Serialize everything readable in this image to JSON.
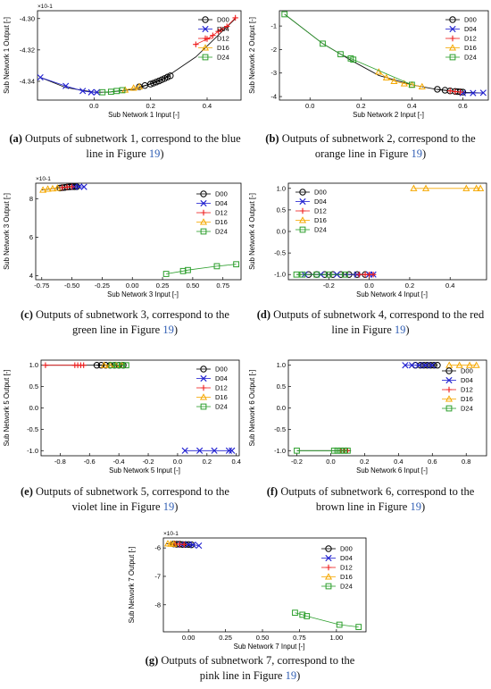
{
  "legend_labels": [
    "D00",
    "D04",
    "D12",
    "D16",
    "D24"
  ],
  "series_styles": [
    {
      "name": "D00",
      "color": "#000000",
      "marker": "circle"
    },
    {
      "name": "D04",
      "color": "#1f1fd0",
      "marker": "x"
    },
    {
      "name": "D12",
      "color": "#ee1c1c",
      "marker": "plus"
    },
    {
      "name": "D16",
      "color": "#f5a800",
      "marker": "triangle"
    },
    {
      "name": "D24",
      "color": "#2b9e2b",
      "marker": "square"
    }
  ],
  "captions": [
    {
      "letter": "(a)",
      "text": "Outputs of subnetwork 1, correspond to the blue line in Figure ",
      "ref": "19",
      "end": ")"
    },
    {
      "letter": "(b)",
      "text": "Outputs of subnetwork 2, correspond to the orange line in Figure ",
      "ref": "19",
      "end": ")"
    },
    {
      "letter": "(c)",
      "text": "Outputs of subnetwork 3, correspond to the green line in Figure ",
      "ref": "19",
      "end": ")"
    },
    {
      "letter": "(d)",
      "text": "Outputs of subnetwork 4, correspond to the red line in Figure ",
      "ref": "19",
      "end": ")"
    },
    {
      "letter": "(e)",
      "text": "Outputs of subnetwork 5, correspond to the violet line in Figure ",
      "ref": "19",
      "end": ")"
    },
    {
      "letter": "(f)",
      "text": "Outputs of subnetwork 6, correspond to the brown line in Figure ",
      "ref": "19",
      "end": ")"
    },
    {
      "letter": "(g)",
      "text": "Outputs of subnetwork 7, correspond to the pink line in Figure ",
      "ref": "19",
      "end": ")"
    }
  ],
  "chart_data": [
    {
      "type": "scatter",
      "xlabel": "Sub Network 1 Input [-]",
      "ylabel": "Sub Network 1 Output [-]",
      "multiplier": "×10^-1",
      "xlim": [
        -0.2,
        0.52
      ],
      "ylim": [
        -4.352,
        -4.295
      ],
      "xticks": [
        0.0,
        0.2,
        0.4
      ],
      "xtick_labels": [
        "0.0",
        "0.2",
        "0.4"
      ],
      "yticks": [
        -4.34,
        -4.32,
        -4.3
      ],
      "ytick_labels": [
        "-4.34",
        "-4.32",
        "-4.30"
      ],
      "legend_pos": "top-right",
      "curve": {
        "color": "#111111",
        "x": [
          -0.19,
          -0.1,
          0.0,
          0.05,
          0.15,
          0.25,
          0.36,
          0.5
        ],
        "y": [
          -4.3375,
          -4.344,
          -4.347,
          -4.347,
          -4.345,
          -4.338,
          -4.3245,
          -4.3
        ]
      },
      "series": [
        {
          "name": "D00",
          "x": [
            0.16,
            0.18,
            0.2,
            0.21,
            0.22,
            0.23,
            0.24,
            0.25,
            0.26,
            0.27
          ],
          "y": [
            -4.3435,
            -4.3427,
            -4.3418,
            -4.3412,
            -4.3405,
            -4.3398,
            -4.339,
            -4.3382,
            -4.3373,
            -4.3365
          ]
        },
        {
          "name": "D04",
          "x": [
            -0.19,
            -0.1,
            -0.04,
            -0.01,
            0.01
          ],
          "y": [
            -4.3375,
            -4.343,
            -4.3462,
            -4.347,
            -4.347
          ]
        },
        {
          "name": "D12",
          "x": [
            0.36,
            0.4,
            0.42,
            0.44,
            0.45,
            0.47,
            0.5
          ],
          "y": [
            -4.3165,
            -4.313,
            -4.3108,
            -4.3082,
            -4.307,
            -4.305,
            -4.2995
          ]
        },
        {
          "name": "D16",
          "x": [
            0.11,
            0.14,
            0.16
          ],
          "y": [
            -4.3455,
            -4.3443,
            -4.3435
          ]
        },
        {
          "name": "D24",
          "x": [
            0.03,
            0.06,
            0.08,
            0.1
          ],
          "y": [
            -4.347,
            -4.3467,
            -4.3462,
            -4.3457
          ]
        }
      ]
    },
    {
      "type": "scatter",
      "xlabel": "Sub Network 2 Input [-]",
      "ylabel": "Sub Network 2 Output [-]",
      "multiplier": "",
      "xlim": [
        -0.12,
        0.7
      ],
      "ylim": [
        -4.15,
        -0.35
      ],
      "xticks": [
        0.0,
        0.2,
        0.4,
        0.6
      ],
      "xtick_labels": [
        "0.0",
        "0.2",
        "0.4",
        "0.6"
      ],
      "yticks": [
        -1,
        -2,
        -3,
        -4
      ],
      "ytick_labels": [
        "-1",
        "-2",
        "-3",
        "-4"
      ],
      "legend_pos": "top-right",
      "curve": {
        "color": "#111111",
        "x": [
          -0.1,
          0.05,
          0.16,
          0.27,
          0.4,
          0.5,
          0.6,
          0.68
        ],
        "y": [
          -0.5,
          -1.75,
          -2.45,
          -3.1,
          -3.5,
          -3.7,
          -3.82,
          -3.85
        ]
      },
      "series": [
        {
          "name": "D00",
          "x": [
            0.5,
            0.53,
            0.55,
            0.57,
            0.58,
            0.59,
            0.6
          ],
          "y": [
            -3.69,
            -3.73,
            -3.76,
            -3.78,
            -3.79,
            -3.8,
            -3.81
          ]
        },
        {
          "name": "D04",
          "x": [
            0.6,
            0.64,
            0.68
          ],
          "y": [
            -3.85,
            -3.85,
            -3.84
          ]
        },
        {
          "name": "D12",
          "x": [
            0.55,
            0.57,
            0.59
          ],
          "y": [
            -3.76,
            -3.79,
            -3.81
          ]
        },
        {
          "name": "D16",
          "x": [
            0.27,
            0.3,
            0.33,
            0.37,
            0.4,
            0.44
          ],
          "y": [
            -2.95,
            -3.2,
            -3.35,
            -3.45,
            -3.5,
            -3.58
          ]
        },
        {
          "name": "D24",
          "x": [
            -0.1,
            0.05,
            0.12,
            0.16,
            0.17,
            0.4
          ],
          "y": [
            -0.5,
            -1.75,
            -2.2,
            -2.38,
            -2.43,
            -3.5
          ]
        }
      ]
    },
    {
      "type": "scatter",
      "xlabel": "Sub Network 3 Input [-]",
      "ylabel": "Sub Network 3 Output [-]",
      "multiplier": "×10^-1",
      "xlim": [
        -0.8,
        0.9
      ],
      "ylim": [
        3.8,
        8.8
      ],
      "xticks": [
        -0.75,
        -0.5,
        -0.25,
        0.0,
        0.25,
        0.5,
        0.75
      ],
      "xtick_labels": [
        "-0.75",
        "-0.50",
        "-0.25",
        "0.00",
        "0.25",
        "0.50",
        "0.75"
      ],
      "yticks": [
        4,
        6,
        8
      ],
      "ytick_labels": [
        "4",
        "6",
        "8"
      ],
      "legend_pos": "right",
      "curve": {
        "color": "#111111",
        "x": [
          -0.75,
          -0.62,
          -0.52,
          -0.45
        ],
        "y": [
          8.45,
          8.55,
          8.62,
          8.63
        ]
      },
      "series": [
        {
          "name": "D00",
          "x": [
            -0.6,
            -0.58,
            -0.56,
            -0.54,
            -0.52,
            -0.5,
            -0.48,
            -0.46
          ],
          "y": [
            8.55,
            8.57,
            8.58,
            8.6,
            8.61,
            8.62,
            8.62,
            8.62
          ]
        },
        {
          "name": "D04",
          "x": [
            -0.48,
            -0.44,
            -0.4
          ],
          "y": [
            8.62,
            8.62,
            8.61
          ]
        },
        {
          "name": "D12",
          "x": [
            -0.58,
            -0.54,
            -0.5
          ],
          "y": [
            8.57,
            8.6,
            8.62
          ]
        },
        {
          "name": "D16",
          "x": [
            -0.74,
            -0.7,
            -0.66,
            -0.62
          ],
          "y": [
            8.45,
            8.5,
            8.52,
            8.55
          ]
        },
        {
          "name": "D24",
          "x": [
            0.28,
            0.42,
            0.46,
            0.7,
            0.86
          ],
          "y": [
            4.1,
            4.25,
            4.3,
            4.5,
            4.6
          ]
        }
      ]
    },
    {
      "type": "scatter",
      "xlabel": "Sub Network 4 Input [-]",
      "ylabel": "Sub Network 4 Output [-]",
      "multiplier": "",
      "xlim": [
        -0.4,
        0.58
      ],
      "ylim": [
        -1.12,
        1.12
      ],
      "xticks": [
        -0.2,
        0.0,
        0.2,
        0.4
      ],
      "xtick_labels": [
        "-0.2",
        "0.0",
        "0.2",
        "0.4"
      ],
      "yticks": [
        -1.0,
        -0.5,
        0.0,
        0.5,
        1.0
      ],
      "ytick_labels": [
        "-1.0",
        "-0.5",
        "0.0",
        "0.5",
        "1.0"
      ],
      "legend_pos": "top-left",
      "curve": {
        "color": "#111111",
        "x": [
          -0.36,
          0.03
        ],
        "y": [
          -1.0,
          -1.0
        ]
      },
      "series": [
        {
          "name": "D00",
          "x": [
            -0.3,
            -0.26,
            -0.22,
            -0.18,
            -0.14,
            -0.1,
            -0.06,
            -0.02
          ],
          "y": [
            -1,
            -1,
            -1,
            -1,
            -1,
            -1,
            -1,
            -1
          ]
        },
        {
          "name": "D04",
          "x": [
            -0.32,
            -0.24,
            -0.16,
            -0.06,
            0.0,
            0.02
          ],
          "y": [
            -1,
            -1,
            -1,
            -1,
            -1,
            -1
          ]
        },
        {
          "name": "D12",
          "x": [
            -0.05,
            -0.02,
            0.0,
            0.02
          ],
          "y": [
            -1,
            -1,
            -1,
            -1
          ]
        },
        {
          "name": "D16",
          "x": [
            0.22,
            0.28,
            0.48,
            0.53,
            0.55
          ],
          "y": [
            1,
            1,
            1,
            1,
            1
          ]
        },
        {
          "name": "D24",
          "x": [
            -0.36,
            -0.33,
            -0.26,
            -0.2,
            -0.12
          ],
          "y": [
            -1,
            -1,
            -1,
            -1,
            -1
          ]
        }
      ]
    },
    {
      "type": "scatter",
      "xlabel": "Sub Network 5 Input [-]",
      "ylabel": "Sub Network 5 Output [-]",
      "multiplier": "",
      "xlim": [
        -0.93,
        0.42
      ],
      "ylim": [
        -1.12,
        1.12
      ],
      "xticks": [
        -0.8,
        -0.6,
        -0.4,
        -0.2,
        0.0,
        0.2,
        0.4
      ],
      "xtick_labels": [
        "-0.8",
        "-0.6",
        "-0.4",
        "-0.2",
        "0.0",
        "0.2",
        "0.4"
      ],
      "yticks": [
        -1.0,
        -0.5,
        0.0,
        0.5,
        1.0
      ],
      "ytick_labels": [
        "-1.0",
        "-0.5",
        "0.0",
        "0.5",
        "1.0"
      ],
      "legend_pos": "top-right",
      "curve": {
        "color": "#111111",
        "x": [
          -0.9,
          -0.35
        ],
        "y": [
          1.0,
          1.0
        ]
      },
      "series": [
        {
          "name": "D00",
          "x": [
            -0.55,
            -0.52,
            -0.49,
            -0.46,
            -0.43,
            -0.4,
            -0.37
          ],
          "y": [
            1,
            1,
            1,
            1,
            1,
            1,
            1
          ]
        },
        {
          "name": "D04",
          "x": [
            0.05,
            0.15,
            0.25,
            0.35,
            0.37
          ],
          "y": [
            -1,
            -1,
            -1,
            -1,
            -1
          ]
        },
        {
          "name": "D12",
          "x": [
            -0.9,
            -0.7,
            -0.68,
            -0.66,
            -0.64
          ],
          "y": [
            1,
            1,
            1,
            1,
            1
          ]
        },
        {
          "name": "D16",
          "x": [
            -0.5,
            -0.46,
            -0.42,
            -0.38
          ],
          "y": [
            1,
            1,
            1,
            1
          ]
        },
        {
          "name": "D24",
          "x": [
            -0.45,
            -0.41,
            -0.38,
            -0.35
          ],
          "y": [
            1,
            1,
            1,
            1
          ]
        }
      ]
    },
    {
      "type": "scatter",
      "xlabel": "Sub Network 6 Input [-]",
      "ylabel": "Sub Network 6 Output [-]",
      "multiplier": "",
      "xlim": [
        -0.25,
        0.92
      ],
      "ylim": [
        -1.12,
        1.12
      ],
      "xticks": [
        -0.2,
        0.0,
        0.2,
        0.4,
        0.6,
        0.8
      ],
      "xtick_labels": [
        "-0.2",
        "0.0",
        "0.2",
        "0.4",
        "0.6",
        "0.8"
      ],
      "yticks": [
        -1.0,
        -0.5,
        0.0,
        0.5,
        1.0
      ],
      "ytick_labels": [
        "-1.0",
        "-0.5",
        "0.0",
        "0.5",
        "1.0"
      ],
      "legend_pos": "right",
      "curve": {
        "color": "#111111",
        "x": [
          -0.2,
          0.12
        ],
        "y": [
          -1.0,
          -1.0
        ]
      },
      "series": [
        {
          "name": "D00",
          "x": [
            0.5,
            0.53,
            0.55,
            0.57,
            0.59,
            0.61,
            0.63
          ],
          "y": [
            1,
            1,
            1,
            1,
            1,
            1,
            1
          ]
        },
        {
          "name": "D04",
          "x": [
            0.44,
            0.48,
            0.52,
            0.56,
            0.6
          ],
          "y": [
            1,
            1,
            1,
            1,
            1
          ]
        },
        {
          "name": "D12",
          "x": [
            0.06,
            0.08,
            0.1
          ],
          "y": [
            -1,
            -1,
            -1
          ]
        },
        {
          "name": "D16",
          "x": [
            0.7,
            0.76,
            0.82,
            0.86
          ],
          "y": [
            1,
            1,
            1,
            1
          ]
        },
        {
          "name": "D24",
          "x": [
            -0.2,
            0.02,
            0.04,
            0.06,
            0.08,
            0.1
          ],
          "y": [
            -1,
            -1,
            -1,
            -1,
            -1,
            -1
          ]
        }
      ]
    },
    {
      "type": "scatter",
      "xlabel": "Sub Network 7 Input [-]",
      "ylabel": "Sub Network 7 Output [-]",
      "multiplier": "×10^-1",
      "xlim": [
        -0.17,
        1.2
      ],
      "ylim": [
        -8.95,
        -5.65
      ],
      "xticks": [
        0.0,
        0.25,
        0.5,
        0.75,
        1.0
      ],
      "xtick_labels": [
        "0.00",
        "0.25",
        "0.50",
        "0.75",
        "1.00"
      ],
      "yticks": [
        -6,
        -7,
        -8
      ],
      "ytick_labels": [
        "-6",
        "-7",
        "-8"
      ],
      "legend_pos": "right",
      "curve": {
        "color": "#111111",
        "x": [
          -0.15,
          0.05
        ],
        "y": [
          -5.85,
          -5.9
        ]
      },
      "series": [
        {
          "name": "D00",
          "x": [
            -0.1,
            -0.08,
            -0.06,
            -0.04,
            -0.02,
            0.0,
            0.02
          ],
          "y": [
            -5.86,
            -5.87,
            -5.87,
            -5.88,
            -5.88,
            -5.88,
            -5.89
          ]
        },
        {
          "name": "D04",
          "x": [
            -0.05,
            0.0,
            0.03,
            0.07
          ],
          "y": [
            -5.88,
            -5.88,
            -5.89,
            -5.92
          ]
        },
        {
          "name": "D12",
          "x": [
            -0.09,
            -0.06,
            -0.03
          ],
          "y": [
            -5.86,
            -5.87,
            -5.88
          ]
        },
        {
          "name": "D16",
          "x": [
            -0.14,
            -0.12,
            -0.1
          ],
          "y": [
            -5.85,
            -5.86,
            -5.86
          ]
        },
        {
          "name": "D24",
          "x": [
            0.72,
            0.77,
            0.8,
            1.02,
            1.15
          ],
          "y": [
            -8.28,
            -8.35,
            -8.4,
            -8.7,
            -8.78
          ]
        }
      ]
    }
  ]
}
